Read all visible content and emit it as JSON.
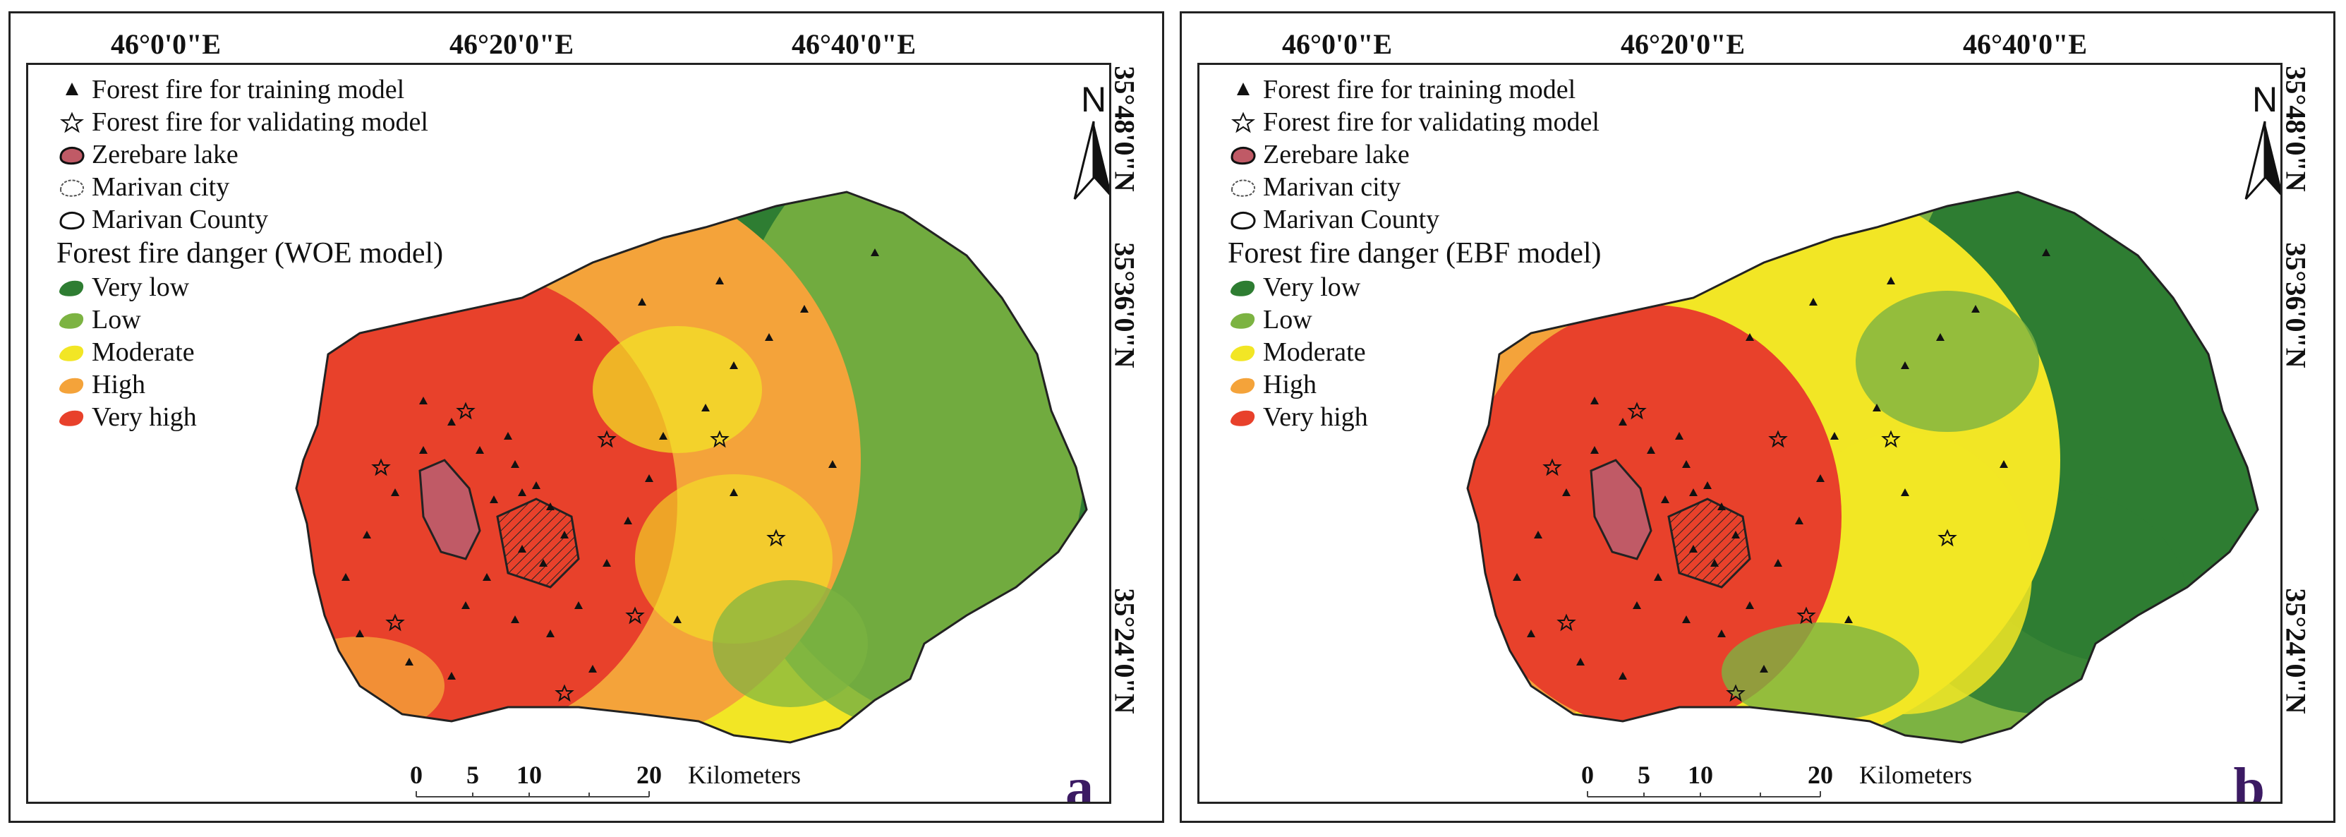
{
  "panels": [
    {
      "id": "a",
      "letter": "a",
      "model": "WOE",
      "legend_heading": "Forest fire danger (WOE model)"
    },
    {
      "id": "b",
      "letter": "b",
      "model": "EBF",
      "legend_heading": "Forest fire danger (EBF model)"
    }
  ],
  "legend": {
    "training": "Forest fire for training model",
    "validating": "Forest fire for validating model",
    "lake": "Zerebare lake",
    "city": "Marivan city",
    "county": "Marivan County",
    "classes": [
      "Very low",
      "Low",
      "Moderate",
      "High",
      "Very high"
    ]
  },
  "colors": {
    "very_low": "#2e7d32",
    "low": "#7cb342",
    "moderate": "#f2e625",
    "high": "#f4a33a",
    "very_high": "#e8412b",
    "lake": "#c05a66"
  },
  "grid": {
    "longitudes": [
      "46°0'0\"E",
      "46°20'0\"E",
      "46°40'0\"E"
    ],
    "latitudes": [
      "35°48'0\"N",
      "35°36'0\"N",
      "35°24'0\"N"
    ]
  },
  "north_arrow": "N",
  "scale_bar": {
    "ticks": [
      "0",
      "5",
      "10",
      "20"
    ],
    "unit": "Kilometers"
  }
}
